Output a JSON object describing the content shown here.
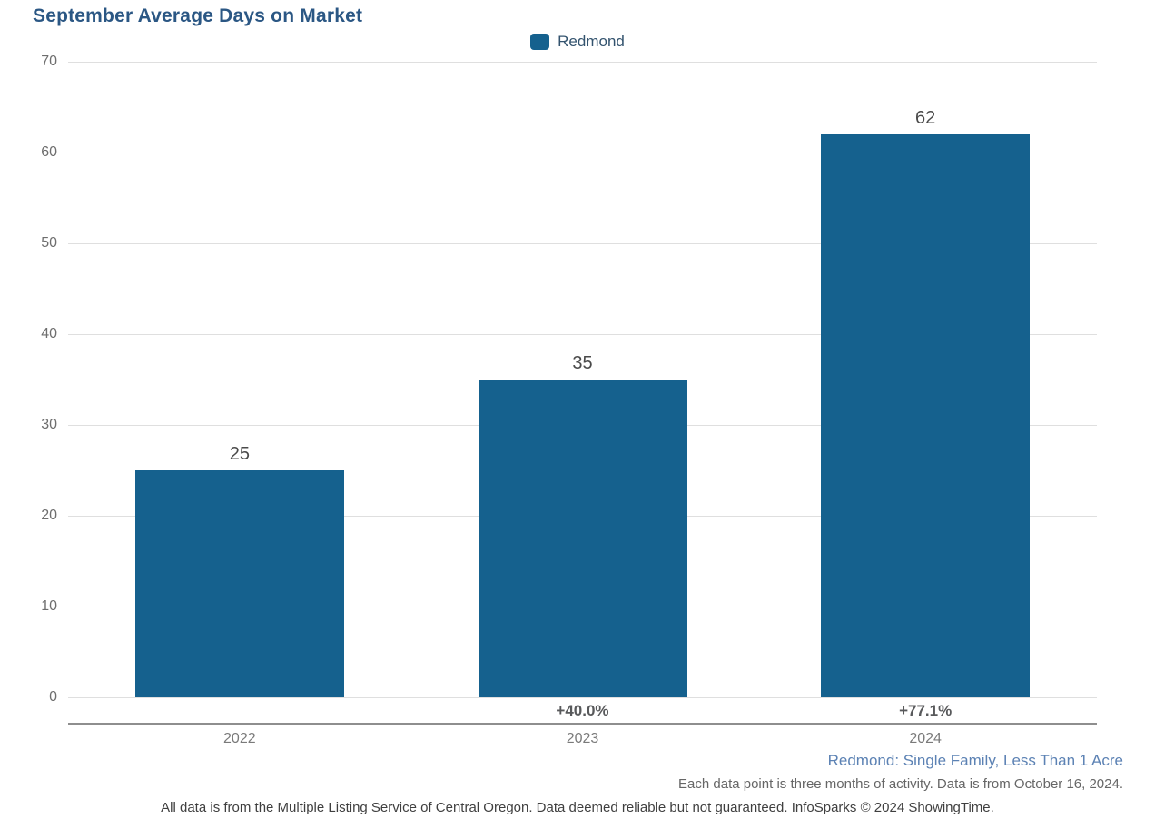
{
  "page": {
    "title": "September Average Days on Market"
  },
  "legend": {
    "items": [
      {
        "label": "Redmond",
        "color": "#15618E"
      }
    ]
  },
  "chart_data": {
    "type": "bar",
    "title": "September Average Days on Market",
    "categories": [
      "2022",
      "2023",
      "2024"
    ],
    "series": [
      {
        "name": "Redmond",
        "color": "#15618E",
        "values": [
          25,
          35,
          62
        ]
      }
    ],
    "pct_change_labels": [
      "",
      "+40.0%",
      "+77.1%"
    ],
    "xlabel": "",
    "ylabel": "",
    "ylim": [
      0,
      70
    ],
    "ytick_step": 10,
    "grid": true,
    "legend_position": "top-center",
    "value_labels_shown": true
  },
  "footnotes": {
    "segment": "Redmond: Single Family, Less Than 1 Acre",
    "data_note": "Each data point is three months of activity. Data is from October 16, 2024.",
    "disclaimer": "All data is from the Multiple Listing Service of Central Oregon. Data deemed reliable but not guaranteed. InfoSparks © 2024 ShowingTime."
  },
  "colors": {
    "bar": "#15618E",
    "title": "#2B5784",
    "gridline": "#DFDFDF",
    "axis_line": "#8E8E8E",
    "segment_note": "#5C82B4"
  }
}
